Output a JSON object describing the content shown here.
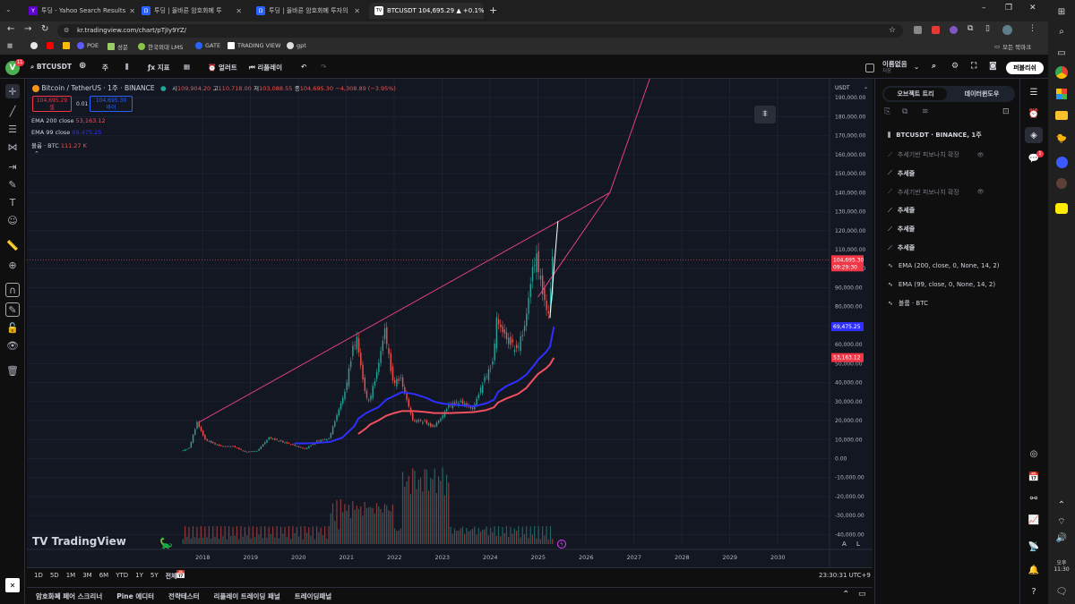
{
  "browser": {
    "tabs": [
      {
        "title": "투딩 - Yahoo Search Results",
        "icon": "yahoo-icon",
        "color": "#6001d2",
        "glyph": "Y"
      },
      {
        "title": "투딩 | 올바른 암호화폐 투",
        "icon": "tuding-icon",
        "color": "#2962ff",
        "glyph": "D"
      },
      {
        "title": "투딩 | 올바른 암호화폐 투자의",
        "icon": "tuding-icon",
        "color": "#2962ff",
        "glyph": "D"
      },
      {
        "title": "BTCUSDT 104,695.29 ▲ +0.1%",
        "icon": "tradingview-icon",
        "color": "#ffffff",
        "glyph": "TV"
      }
    ],
    "url": "kr.tradingview.com/chart/pTjIy9YZ/",
    "bookmarks": [
      "POE",
      "성문",
      "한국외대 LMS",
      "GATE",
      "TRADING VIEW",
      "gpt"
    ],
    "bookmarks_folder": "모든 북마크"
  },
  "toolbar": {
    "symbol": "BTCUSDT",
    "interval": "주",
    "indicators": "지표",
    "alerts": "얼러트",
    "replay": "리플레이",
    "layout_name": "이름없음",
    "layout_sub": "저장",
    "publish": "퍼블리쉬",
    "avatar_letter": "V",
    "avatar_badge": "11"
  },
  "legend": {
    "title": "Bitcoin / TetherUS · 1주 · BINANCE",
    "o_label": "시",
    "o": "109,904.20",
    "h_label": "고",
    "h": "110,718.00",
    "l_label": "저",
    "l": "103,088.55",
    "c_label": "종",
    "c": "104,695.30",
    "change": "−4,308.89 (−3.95%)",
    "sell_price": "104,695.29",
    "sell_label": "셀",
    "spread": "0.01",
    "buy_price": "104,695.30",
    "buy_label": "바이",
    "ema200_label": "EMA 200 close",
    "ema200_value": "53,163.12",
    "ema99_label": "EMA 99 close",
    "ema99_value": "69,475.25",
    "volume_label": "볼륨 · BTC",
    "volume_value": "111.27 K"
  },
  "chart_data": {
    "type": "line",
    "x": [
      "2017-08",
      "2017-10",
      "2017-12",
      "2018-02",
      "2018-04",
      "2018-06",
      "2018-09",
      "2018-12",
      "2019-03",
      "2019-06",
      "2019-09",
      "2019-12",
      "2020-03",
      "2020-06",
      "2020-09",
      "2020-12",
      "2021-01",
      "2021-03",
      "2021-04",
      "2021-06",
      "2021-07",
      "2021-09",
      "2021-11",
      "2022-01",
      "2022-03",
      "2022-06",
      "2022-09",
      "2022-11",
      "2023-01",
      "2023-03",
      "2023-06",
      "2023-09",
      "2023-12",
      "2024-02",
      "2024-03",
      "2024-05",
      "2024-08",
      "2024-10",
      "2024-12",
      "2025-01",
      "2025-03",
      "2025-04",
      "2025-05"
    ],
    "series": [
      {
        "values": [
          4000,
          5500,
          19000,
          10000,
          8000,
          6500,
          6500,
          3500,
          4000,
          11000,
          9000,
          7200,
          5000,
          9200,
          10500,
          29000,
          35000,
          58000,
          63000,
          35000,
          30000,
          45000,
          68000,
          40000,
          42000,
          20000,
          19500,
          16500,
          21000,
          28000,
          30000,
          26000,
          42000,
          50000,
          73000,
          65000,
          57000,
          69000,
          100000,
          106000,
          82000,
          76000,
          104700
        ]
      },
      {
        "values": [
          null,
          null,
          null,
          null,
          null,
          null,
          null,
          null,
          null,
          null,
          null,
          8000,
          8000,
          8300,
          8800,
          11000,
          13000,
          17000,
          21000,
          24000,
          25000,
          27000,
          31000,
          33000,
          35000,
          34000,
          32000,
          30000,
          29000,
          28500,
          28000,
          27500,
          29000,
          31000,
          35000,
          38000,
          41000,
          44000,
          49000,
          52000,
          56000,
          59000,
          69475.25
        ]
      },
      {
        "values": [
          null,
          null,
          null,
          null,
          null,
          null,
          null,
          null,
          null,
          null,
          null,
          null,
          null,
          null,
          null,
          null,
          null,
          null,
          13000,
          16000,
          18000,
          20000,
          22500,
          24000,
          25000,
          25000,
          24500,
          24000,
          24000,
          24000,
          24200,
          24500,
          25500,
          27000,
          29500,
          31500,
          34000,
          37000,
          42000,
          44500,
          47500,
          49500,
          53163.12
        ]
      }
    ],
    "ylim": [
      -45000,
      200000
    ],
    "y_ticks": [
      -40000,
      -30000,
      -20000,
      -10000,
      0,
      10000,
      20000,
      30000,
      40000,
      50000,
      60000,
      70000,
      80000,
      90000,
      100000,
      110000,
      120000,
      130000,
      140000,
      150000,
      160000,
      170000,
      180000,
      190000
    ],
    "y_tick_labels": [
      "-40,000.00",
      "-30,000.00",
      "-20,000.00",
      "-10,000.00",
      "0.00",
      "10,000.00",
      "20,000.00",
      "30,000.00",
      "40,000.00",
      "50,000.00",
      "60,000.00",
      "70,000.00",
      "80,000.00",
      "90,000.00",
      "100,000.00",
      "110,000.00",
      "120,000.00",
      "130,000.00",
      "140,000.00",
      "150,000.00",
      "160,000.00",
      "170,000.00",
      "180,000.00",
      "190,000.00"
    ],
    "x_ticks": [
      "2018",
      "2019",
      "2020",
      "2021",
      "2022",
      "2023",
      "2024",
      "2025",
      "2026",
      "2027",
      "2028",
      "2029",
      "2030"
    ],
    "price_tag": "104,695.30",
    "countdown": "09:29:30",
    "ema99_tag": "69,475.25",
    "ema200_tag": "53,163.12",
    "currency": "USDT",
    "trendlines": [
      {
        "from": [
          "2017-12",
          19000
        ],
        "to": [
          "2026-07",
          140000
        ]
      },
      {
        "from": [
          "2025-01",
          85000
        ],
        "to": [
          "2026-07",
          140000
        ]
      },
      {
        "from": [
          "2026-07",
          140000
        ],
        "to": [
          "2027-05",
          200000
        ]
      },
      {
        "from": [
          "2025-04",
          74000
        ],
        "to": [
          "2025-06",
          125000
        ]
      }
    ],
    "grid": true
  },
  "chart": {
    "watermark": "TradingView",
    "log_btn": "L",
    "auto_btn": "A"
  },
  "timeframes": [
    "1D",
    "5D",
    "1M",
    "3M",
    "6M",
    "YTD",
    "1Y",
    "5Y",
    "전체"
  ],
  "clock": "23:30:31 UTC+9",
  "bottom_tabs": [
    "암호화폐 페어 스크리너",
    "Pine 에디터",
    "전략테스터",
    "리플레이 트레이딩 패널",
    "트레이딩패널"
  ],
  "object_tree": {
    "tab1": "오브젝트 트리",
    "tab2": "데이터윈도우",
    "root": "BTCUSDT · BINANCE, 1주",
    "items": [
      {
        "label": "추세기반 피보나치 확장",
        "dim": true,
        "icon": "fib-extension-icon"
      },
      {
        "label": "추세줄",
        "dim": false,
        "icon": "trend-line-icon"
      },
      {
        "label": "추세기반 피보나치 확장",
        "dim": true,
        "icon": "fib-extension-icon"
      },
      {
        "label": "추세줄",
        "dim": false,
        "icon": "trend-line-icon"
      },
      {
        "label": "추세줄",
        "dim": false,
        "icon": "trend-line-icon"
      },
      {
        "label": "추세줄",
        "dim": false,
        "icon": "trend-line-icon"
      },
      {
        "label": "EMA (200, close, 0, None, 14, 2)",
        "dim": false,
        "icon": "indicator-icon"
      },
      {
        "label": "EMA (99, close, 0, None, 14, 2)",
        "dim": false,
        "icon": "indicator-icon"
      },
      {
        "label": "볼륨 · BTC",
        "dim": false,
        "icon": "indicator-icon"
      }
    ]
  },
  "system": {
    "time": "오후 11:30",
    "notif_badge": "1"
  },
  "colors": {
    "ema99": "#2f2fff",
    "ema200": "#f2505f",
    "trend": "#e0407f",
    "up": "#26a69a",
    "down": "#ef5350",
    "price_tag": "#f23645"
  }
}
